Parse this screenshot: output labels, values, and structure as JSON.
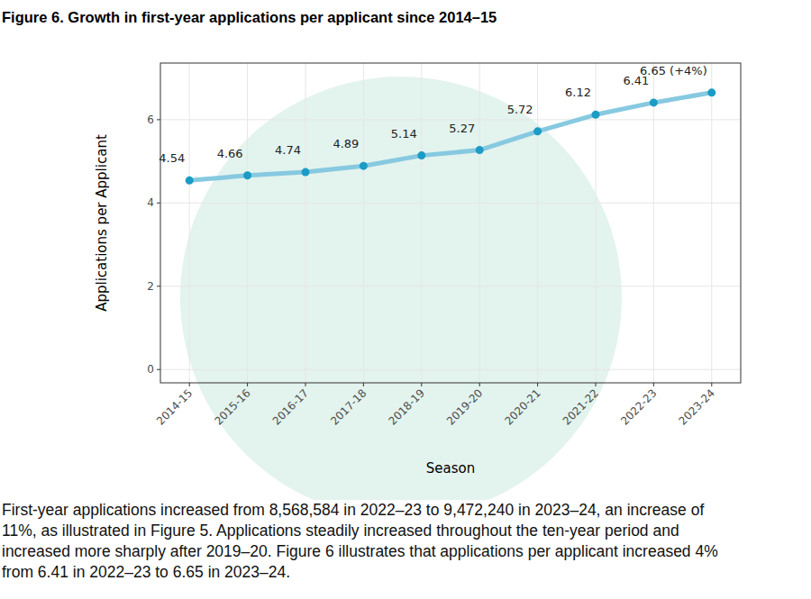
{
  "chart_data": {
    "type": "line",
    "title": "Figure 6. Growth in first-year applications per applicant since 2014–15",
    "x_label": "Season",
    "y_label": "Applications per Applicant",
    "categories": [
      "2014-15",
      "2015-16",
      "2016-17",
      "2017-18",
      "2018-19",
      "2019-20",
      "2020-21",
      "2021-22",
      "2022-23",
      "2023-24"
    ],
    "values": [
      4.54,
      4.66,
      4.74,
      4.89,
      5.14,
      5.27,
      5.72,
      6.12,
      6.41,
      6.65
    ],
    "value_labels": [
      "4.54",
      "4.66",
      "4.74",
      "4.89",
      "5.14",
      "5.27",
      "5.72",
      "6.12",
      "6.41",
      "6.65 (+4%)"
    ],
    "color": "#86c9e0",
    "marker": "circle",
    "data_labels": true,
    "grid": true,
    "ylim": [
      -0.32,
      7.36
    ],
    "yticks": [
      0,
      2,
      4,
      6
    ]
  },
  "caption_lines": [
    "First-year applications increased from 8,568,584 in 2022–23 to 9,472,240 in 2023–24, an increase of",
    "11%, as illustrated in Figure 5. Applications steadily increased throughout the ten-year period and",
    "increased more sharply after 2019–20. Figure 6 illustrates that applications per applicant increased 4%",
    "from 6.41 in 2022–23 to 6.65 in 2023–24."
  ]
}
